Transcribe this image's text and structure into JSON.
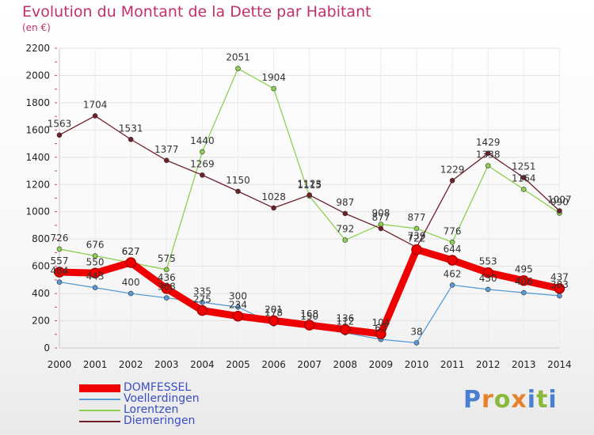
{
  "title": "Evolution du Montant de la Dette par Habitant",
  "subtitle": "(en €)",
  "logo": {
    "letters": [
      "P",
      "r",
      "o",
      "x",
      "i",
      "t",
      "i"
    ],
    "colors": [
      "#4a7fd0",
      "#e8822a",
      "#8ab838",
      "#e8822a",
      "#4a7fd0",
      "#8ab838",
      "#4a7fd0"
    ]
  },
  "chart_data": {
    "type": "line",
    "x": [
      "2000",
      "2001",
      "2002",
      "2003",
      "2004",
      "2005",
      "2006",
      "2007",
      "2008",
      "2009",
      "2010",
      "2011",
      "2012",
      "2013",
      "2014"
    ],
    "yticks": [
      "0",
      "200",
      "400",
      "600",
      "800",
      "1000",
      "1200",
      "1400",
      "1600",
      "1800",
      "2000",
      "2200"
    ],
    "ylim": [
      0,
      2200
    ],
    "grid": true,
    "legend_position": "bottom-left",
    "series": [
      {
        "name": "DOMFESSEL",
        "color": "#ee0000",
        "values": [
          557,
          550,
          627,
          436,
          275,
          234,
          201,
          168,
          136,
          104,
          722,
          644,
          553,
          495,
          437
        ]
      },
      {
        "name": "Voellerdingen",
        "color": "#5b9bd5",
        "values": [
          484,
          443,
          400,
          368,
          335,
          300,
          178,
          150,
          112,
          63,
          38,
          462,
          430,
          406,
          383
        ]
      },
      {
        "name": "Lorentzen",
        "color": "#8dd050",
        "values": [
          726,
          676,
          627,
          575,
          1440,
          2051,
          1904,
          1115,
          792,
          908,
          877,
          776,
          1338,
          1164,
          990
        ]
      },
      {
        "name": "Diemeringen",
        "color": "#6e1f2a",
        "values": [
          1563,
          1704,
          1531,
          1377,
          1269,
          1150,
          1028,
          1123,
          987,
          877,
          739,
          1229,
          1429,
          1251,
          1007
        ]
      }
    ],
    "labels": [
      [
        "557",
        "550",
        "627",
        "436",
        "275",
        "234",
        "201",
        "168",
        "136",
        "104",
        "722",
        "644",
        "553",
        "495",
        "437"
      ],
      [
        "484",
        "443",
        "400",
        "368",
        "335",
        "300",
        "178",
        "150",
        "112",
        "63",
        "38",
        "462",
        "430",
        "406",
        "383"
      ],
      [
        "726",
        "676",
        "627",
        "575",
        "1440",
        "2051",
        "1904",
        "1115",
        "792",
        "908",
        "877",
        "776",
        "1338",
        "1164",
        "990"
      ],
      [
        "1563",
        "1704",
        "1531",
        "1377",
        "1269",
        "1150",
        "1028",
        "1123",
        "987",
        "877",
        "739",
        "1229",
        "1429",
        "1251",
        "1007"
      ]
    ]
  }
}
